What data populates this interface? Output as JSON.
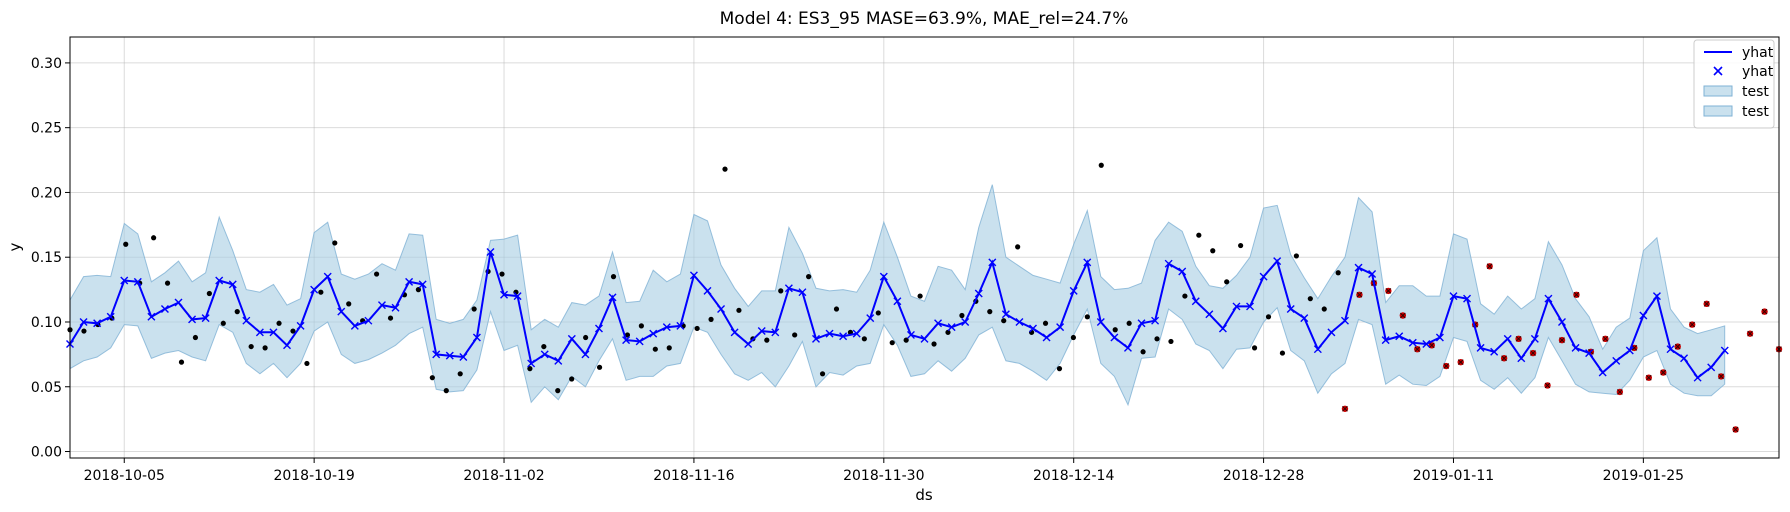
{
  "chart_data": {
    "type": "line",
    "title": "Model 4: ES3_95 MASE=63.9%, MAE_rel=24.7%",
    "xlabel": "ds",
    "ylabel": "y",
    "x_start": "2018-10-01",
    "x_end": "2019-02-04",
    "xlim": [
      "2018-10-01",
      "2019-02-04"
    ],
    "ylim": [
      -0.005,
      0.32
    ],
    "x_ticks": [
      "2018-10-05",
      "2018-10-19",
      "2018-11-02",
      "2018-11-16",
      "2018-11-30",
      "2018-12-14",
      "2018-12-28",
      "2019-01-11",
      "2019-01-25"
    ],
    "y_ticks": [
      "0.00",
      "0.05",
      "0.10",
      "0.15",
      "0.20",
      "0.25",
      "0.30"
    ],
    "grid": true,
    "legend_position": "top-right",
    "legend": [
      {
        "label": "yhat",
        "kind": "line"
      },
      {
        "label": "yhat",
        "kind": "marker"
      },
      {
        "label": "test",
        "kind": "band"
      },
      {
        "label": "test",
        "kind": "band"
      }
    ],
    "colors": {
      "forecast": "#0000ff",
      "band": "#a6cde3",
      "band_edge": "#7fb2d5",
      "history": "#000000",
      "test_points": "#cc0000"
    },
    "yhat": [
      0.083,
      0.1,
      0.099,
      0.104,
      0.132,
      0.131,
      0.104,
      0.11,
      0.115,
      0.102,
      0.103,
      0.132,
      0.129,
      0.101,
      0.092,
      0.092,
      0.082,
      0.097,
      0.125,
      0.135,
      0.108,
      0.097,
      0.101,
      0.113,
      0.111,
      0.131,
      0.129,
      0.075,
      0.074,
      0.073,
      0.088,
      0.154,
      0.121,
      0.12,
      0.068,
      0.075,
      0.07,
      0.087,
      0.075,
      0.095,
      0.119,
      0.086,
      0.085,
      0.091,
      0.096,
      0.097,
      0.136,
      0.124,
      0.11,
      0.092,
      0.083,
      0.093,
      0.092,
      0.126,
      0.123,
      0.087,
      0.091,
      0.089,
      0.091,
      0.103,
      0.135,
      0.116,
      0.09,
      0.087,
      0.099,
      0.096,
      0.1,
      0.122,
      0.146,
      0.106,
      0.1,
      0.095,
      0.088,
      0.096,
      0.124,
      0.146,
      0.1,
      0.088,
      0.08,
      0.099,
      0.101,
      0.145,
      0.139,
      0.116,
      0.106,
      0.095,
      0.112,
      0.112,
      0.135,
      0.147,
      0.11,
      0.103,
      0.079,
      0.092,
      0.101,
      0.142,
      0.137,
      0.086,
      0.089,
      0.084,
      0.083,
      0.088,
      0.12,
      0.118,
      0.08,
      0.077,
      0.087,
      0.072,
      0.087,
      0.118,
      0.1,
      0.08,
      0.076,
      0.061,
      0.07,
      0.078,
      0.105,
      0.12,
      0.079,
      0.072,
      0.057,
      0.065,
      0.078
    ],
    "lower": [
      0.064,
      0.07,
      0.073,
      0.08,
      0.098,
      0.097,
      0.072,
      0.076,
      0.078,
      0.073,
      0.07,
      0.098,
      0.092,
      0.068,
      0.06,
      0.068,
      0.057,
      0.068,
      0.093,
      0.1,
      0.075,
      0.068,
      0.071,
      0.076,
      0.082,
      0.091,
      0.096,
      0.048,
      0.046,
      0.047,
      0.063,
      0.108,
      0.078,
      0.082,
      0.038,
      0.05,
      0.04,
      0.058,
      0.05,
      0.07,
      0.087,
      0.055,
      0.058,
      0.058,
      0.066,
      0.068,
      0.096,
      0.092,
      0.075,
      0.06,
      0.055,
      0.061,
      0.05,
      0.066,
      0.085,
      0.05,
      0.061,
      0.059,
      0.066,
      0.068,
      0.098,
      0.082,
      0.058,
      0.06,
      0.07,
      0.062,
      0.072,
      0.09,
      0.096,
      0.07,
      0.068,
      0.062,
      0.055,
      0.068,
      0.09,
      0.11,
      0.068,
      0.058,
      0.036,
      0.072,
      0.073,
      0.11,
      0.102,
      0.083,
      0.078,
      0.064,
      0.079,
      0.08,
      0.1,
      0.111,
      0.078,
      0.07,
      0.045,
      0.06,
      0.068,
      0.102,
      0.098,
      0.052,
      0.059,
      0.052,
      0.051,
      0.058,
      0.088,
      0.085,
      0.055,
      0.048,
      0.057,
      0.045,
      0.057,
      0.088,
      0.07,
      0.052,
      0.046,
      0.045,
      0.044,
      0.055,
      0.073,
      0.078,
      0.052,
      0.045,
      0.043,
      0.043,
      0.052
    ],
    "upper": [
      0.117,
      0.135,
      0.136,
      0.135,
      0.176,
      0.168,
      0.131,
      0.138,
      0.147,
      0.131,
      0.138,
      0.181,
      0.155,
      0.125,
      0.123,
      0.129,
      0.113,
      0.118,
      0.169,
      0.177,
      0.137,
      0.133,
      0.137,
      0.145,
      0.14,
      0.168,
      0.167,
      0.102,
      0.099,
      0.102,
      0.117,
      0.163,
      0.164,
      0.167,
      0.094,
      0.102,
      0.096,
      0.115,
      0.113,
      0.12,
      0.154,
      0.115,
      0.116,
      0.14,
      0.131,
      0.137,
      0.183,
      0.178,
      0.144,
      0.126,
      0.112,
      0.124,
      0.124,
      0.173,
      0.153,
      0.126,
      0.124,
      0.125,
      0.123,
      0.14,
      0.177,
      0.15,
      0.12,
      0.116,
      0.143,
      0.14,
      0.125,
      0.173,
      0.206,
      0.15,
      0.143,
      0.136,
      0.133,
      0.13,
      0.16,
      0.186,
      0.135,
      0.125,
      0.126,
      0.13,
      0.163,
      0.177,
      0.17,
      0.143,
      0.128,
      0.126,
      0.136,
      0.15,
      0.188,
      0.19,
      0.152,
      0.134,
      0.118,
      0.135,
      0.15,
      0.196,
      0.185,
      0.115,
      0.128,
      0.128,
      0.12,
      0.12,
      0.168,
      0.164,
      0.114,
      0.106,
      0.12,
      0.11,
      0.118,
      0.162,
      0.144,
      0.118,
      0.104,
      0.079,
      0.096,
      0.103,
      0.155,
      0.165,
      0.11,
      0.096,
      0.091,
      0.094,
      0.097
    ],
    "history_points": [
      0.094,
      0.093,
      0.098,
      0.103,
      0.16,
      0.13,
      0.165,
      0.13,
      0.069,
      0.088,
      0.122,
      0.099,
      0.108,
      0.081,
      0.08,
      0.099,
      0.093,
      0.068,
      0.123,
      0.161,
      0.114,
      0.101,
      0.137,
      0.103,
      0.121,
      0.125,
      0.057,
      0.047,
      0.06,
      0.11,
      0.139,
      0.137,
      0.123,
      0.064,
      0.081,
      0.047,
      0.056,
      0.088,
      0.065,
      0.135,
      0.09,
      0.097,
      0.079,
      0.08,
      0.097,
      0.095,
      0.102,
      0.218,
      0.109,
      0.087,
      0.086,
      0.124,
      0.09,
      0.135,
      0.06,
      0.11,
      0.092,
      0.087,
      0.107,
      0.084,
      0.086,
      0.12,
      0.083,
      0.092,
      0.105,
      0.116,
      0.108,
      0.101,
      0.158,
      0.092,
      0.099,
      0.064,
      0.088,
      0.104,
      0.221,
      0.094,
      0.099,
      0.077,
      0.087,
      0.085,
      0.12,
      0.167,
      0.155,
      0.131,
      0.159,
      0.08,
      0.104,
      0.076,
      0.151,
      0.118,
      0.11,
      0.138
    ],
    "test_points": [
      0.033,
      0.121,
      0.13,
      0.124,
      0.105,
      0.079,
      0.082,
      0.066,
      0.069,
      0.098,
      0.143,
      0.072,
      0.087,
      0.076,
      0.051,
      0.086,
      0.121,
      0.077,
      0.087,
      0.046,
      0.08,
      0.057,
      0.061,
      0.081,
      0.098,
      0.114,
      0.058,
      0.017,
      0.091,
      0.108,
      0.079
    ]
  }
}
